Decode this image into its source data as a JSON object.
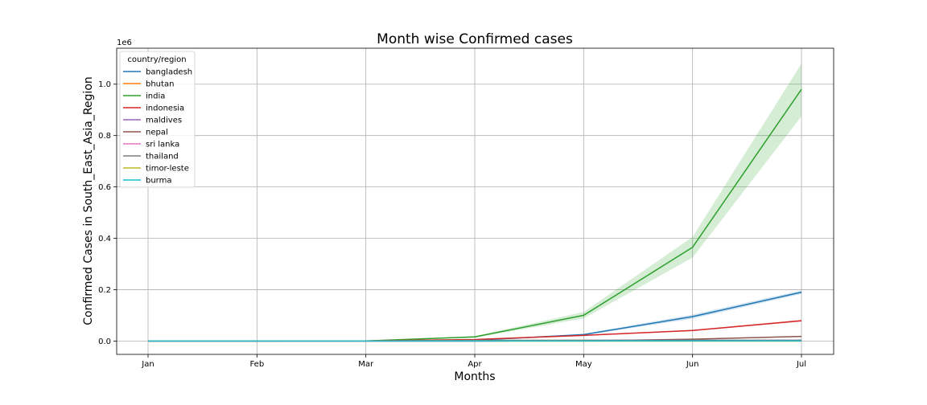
{
  "chart_data": {
    "type": "line",
    "title": "Month wise Confirmed cases",
    "xlabel": "Months",
    "ylabel": "Confirmed Cases in South_East_Asia_Region",
    "y_offset_label": "1e6",
    "categories": [
      "Jan",
      "Feb",
      "Mar",
      "Apr",
      "May",
      "Jun",
      "Jul"
    ],
    "yticks": [
      "0.0",
      "0.2",
      "0.4",
      "0.6",
      "0.8",
      "1.0"
    ],
    "y_tick_values": [
      0,
      200000,
      400000,
      600000,
      800000,
      1000000
    ],
    "ylim": [
      -52000,
      1140000
    ],
    "grid": true,
    "legend": {
      "title": "country/region",
      "placement": "top-left"
    },
    "series": [
      {
        "name": "bangladesh",
        "color": "#1f77b4",
        "values": [
          0,
          0,
          0,
          3000,
          25000,
          95000,
          190000
        ],
        "lower": [
          0,
          0,
          0,
          2500,
          22000,
          87000,
          183000
        ],
        "upper": [
          0,
          0,
          0,
          3500,
          28000,
          103000,
          197000
        ]
      },
      {
        "name": "bhutan",
        "color": "#ff7f0e",
        "values": [
          0,
          0,
          0,
          0,
          0,
          0,
          0
        ]
      },
      {
        "name": "india",
        "color": "#2ca02c",
        "values": [
          0,
          0,
          500,
          16000,
          100000,
          365000,
          980000
        ],
        "lower": [
          0,
          0,
          400,
          13000,
          88000,
          325000,
          875000
        ],
        "upper": [
          0,
          0,
          600,
          19000,
          113000,
          405000,
          1080000
        ]
      },
      {
        "name": "indonesia",
        "color": "#d62728",
        "values": [
          0,
          0,
          400,
          6000,
          22000,
          41000,
          79000
        ],
        "lower": [
          0,
          0,
          300,
          5500,
          20000,
          38500,
          75000
        ],
        "upper": [
          0,
          0,
          500,
          6500,
          24000,
          43500,
          83000
        ]
      },
      {
        "name": "maldives",
        "color": "#9467bd",
        "values": [
          0,
          0,
          0,
          0,
          700,
          1800,
          2500
        ]
      },
      {
        "name": "nepal",
        "color": "#8c564b",
        "values": [
          0,
          0,
          0,
          0,
          800,
          7000,
          18000
        ],
        "lower": [
          0,
          0,
          0,
          0,
          600,
          6000,
          16000
        ],
        "upper": [
          0,
          0,
          0,
          0,
          1000,
          8000,
          20000
        ]
      },
      {
        "name": "sri lanka",
        "color": "#e377c2",
        "values": [
          0,
          0,
          0,
          200,
          900,
          1700,
          2400
        ]
      },
      {
        "name": "thailand",
        "color": "#7f7f7f",
        "values": [
          0,
          0,
          400,
          2700,
          3000,
          3100,
          3200
        ]
      },
      {
        "name": "timor-leste",
        "color": "#bcbd22",
        "values": [
          0,
          0,
          0,
          0,
          0,
          0,
          0
        ]
      },
      {
        "name": "burma",
        "color": "#17becf",
        "values": [
          0,
          0,
          0,
          100,
          200,
          300,
          300
        ]
      }
    ]
  }
}
